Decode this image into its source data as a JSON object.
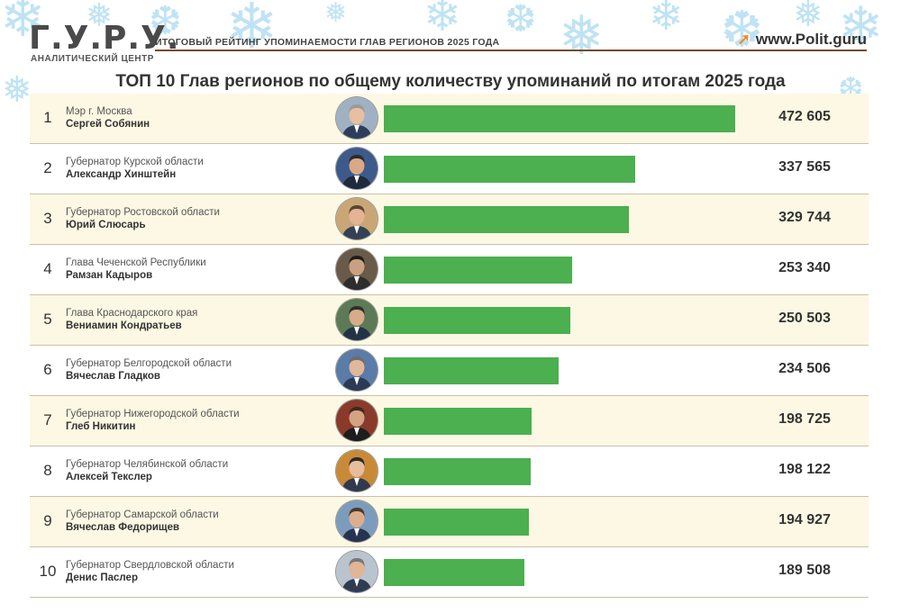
{
  "header": {
    "logo": "Г.У.Р.У.",
    "logo_subtitle": "АНАЛИТИЧЕСКИЙ ЦЕНТР",
    "caption": "ИТОГОВЫЙ РЕЙТИНГ УПОМИНАЕМОСТИ ГЛАВ РЕГИОНОВ 2025 ГОДА",
    "website": "www.Polit.guru"
  },
  "chart_data": {
    "type": "bar",
    "orientation": "horizontal",
    "title": "ТОП 10 Глав регионов по общему количеству упоминаний по итогам 2025 года",
    "xlabel": "",
    "ylabel": "",
    "grid": false,
    "bar_color": "#4caf50",
    "rows": [
      {
        "rank": "1",
        "position": "Мэр г. Москва",
        "name": "Сергей Собянин",
        "value": 472605,
        "value_label": "472 605"
      },
      {
        "rank": "2",
        "position": "Губернатор Курской области",
        "name": "Александр Хинштейн",
        "value": 337565,
        "value_label": "337 565"
      },
      {
        "rank": "3",
        "position": "Губернатор Ростовской области",
        "name": "Юрий Слюсарь",
        "value": 329744,
        "value_label": "329 744"
      },
      {
        "rank": "4",
        "position": "Глава Чеченской Республики",
        "name": "Рамзан Кадыров",
        "value": 253340,
        "value_label": "253 340"
      },
      {
        "rank": "5",
        "position": "Глава Краснодарского края",
        "name": "Вениамин Кондратьев",
        "value": 250503,
        "value_label": "250 503"
      },
      {
        "rank": "6",
        "position": "Губернатор Белгородской области",
        "name": "Вячеслав Гладков",
        "value": 234506,
        "value_label": "234 506"
      },
      {
        "rank": "7",
        "position": "Губернатор Нижегородской области",
        "name": "Глеб Никитин",
        "value": 198725,
        "value_label": "198 725"
      },
      {
        "rank": "8",
        "position": "Губернатор Челябинской области",
        "name": "Алексей Текслер",
        "value": 198122,
        "value_label": "198 122"
      },
      {
        "rank": "9",
        "position": "Губернатор Самарской области",
        "name": "Вячеслав Федорищев",
        "value": 194927,
        "value_label": "194 927"
      },
      {
        "rank": "10",
        "position": "Губернатор Свердловской области",
        "name": "Денис Паслер",
        "value": 189508,
        "value_label": "189 508"
      }
    ]
  }
}
